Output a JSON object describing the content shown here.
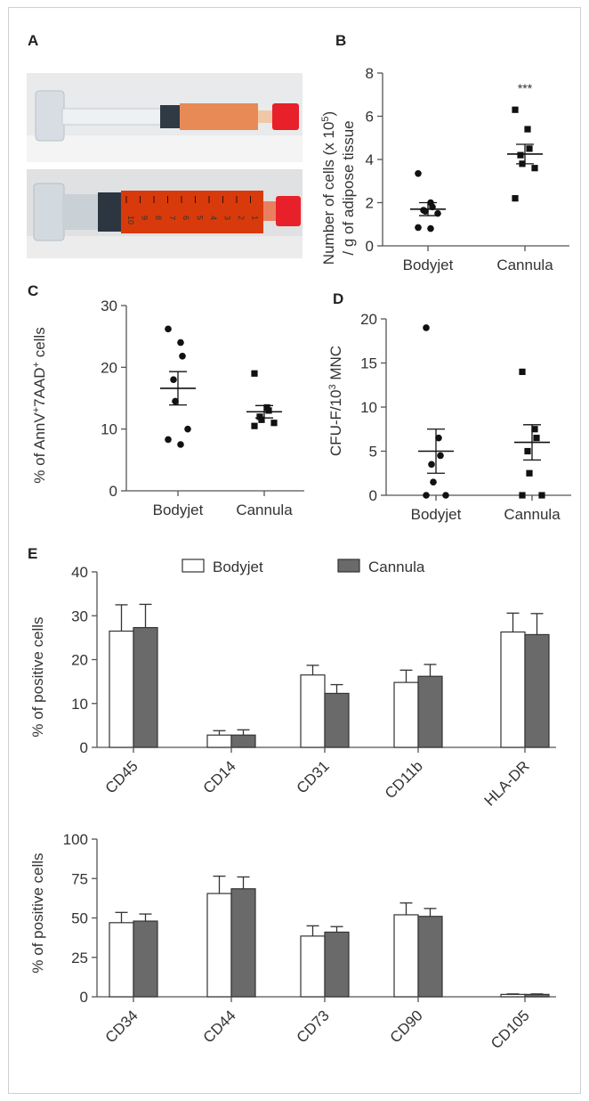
{
  "panels": {
    "A": {
      "label": "A"
    },
    "B": {
      "label": "B"
    },
    "C": {
      "label": "C"
    },
    "D": {
      "label": "D"
    },
    "E": {
      "label": "E"
    }
  },
  "photos": {
    "top_syringe_color": "#e88a55",
    "bottom_syringe_color": "#d83a0c",
    "cap_color": "#e8202a",
    "bottom_scale_numbers": [
      "10",
      "9",
      "8",
      "7",
      "6",
      "5",
      "4",
      "3",
      "2",
      "1"
    ]
  },
  "colors": {
    "open_bar": "#ffffff",
    "filled_bar": "#6a6a6a",
    "axis": "#555555",
    "point": "#111111"
  },
  "chart_data": [
    {
      "id": "B",
      "type": "scatter",
      "ylabel_line1": "Number of cells (x 10",
      "ylabel_sup": "5",
      "ylabel_line1_end": ")",
      "ylabel_line2": "/ g of adipose tissue",
      "ylim": [
        0,
        8
      ],
      "yticks": [
        "0",
        "2",
        "4",
        "6",
        "8"
      ],
      "categories": [
        "Bodyjet",
        "Cannula"
      ],
      "markers": [
        "circle",
        "square"
      ],
      "annotation": "***",
      "points": [
        [
          3.35,
          2.0,
          1.8,
          1.65,
          1.6,
          1.5,
          0.85,
          0.8
        ],
        [
          6.3,
          5.4,
          4.5,
          4.2,
          3.8,
          3.6,
          2.2
        ]
      ],
      "mean": [
        1.7,
        4.25
      ],
      "sem": [
        0.3,
        0.45
      ]
    },
    {
      "id": "C",
      "type": "scatter",
      "ylabel_pre": "% of AnnV",
      "ylabel_sup1": "+",
      "ylabel_mid": "7AAD",
      "ylabel_sup2": "+",
      "ylabel_post": " cells",
      "ylim": [
        0,
        30
      ],
      "yticks": [
        "0",
        "10",
        "20",
        "30"
      ],
      "categories": [
        "Bodyjet",
        "Cannula"
      ],
      "markers": [
        "circle",
        "square"
      ],
      "points": [
        [
          26.2,
          24.0,
          21.8,
          18.0,
          14.5,
          10.0,
          8.3,
          7.5
        ],
        [
          19.0,
          13.5,
          13.0,
          12.0,
          11.5,
          11.0,
          10.5
        ]
      ],
      "mean": [
        16.6,
        12.8
      ],
      "sem": [
        2.7,
        1.0
      ]
    },
    {
      "id": "D",
      "type": "scatter",
      "ylabel_pre": "CFU-F/10",
      "ylabel_sup": "3",
      "ylabel_post": " MNC",
      "ylim": [
        0,
        20
      ],
      "yticks": [
        "0",
        "5",
        "10",
        "15",
        "20"
      ],
      "categories": [
        "Bodyjet",
        "Cannula"
      ],
      "markers": [
        "circle",
        "square"
      ],
      "points": [
        [
          19.0,
          6.5,
          4.5,
          3.5,
          1.5,
          0.0,
          0.0
        ],
        [
          14.0,
          7.5,
          6.5,
          5.0,
          2.5,
          0.0,
          0.0
        ]
      ],
      "mean": [
        5.0,
        6.0
      ],
      "sem": [
        2.5,
        2.0
      ]
    },
    {
      "id": "E1",
      "type": "bar",
      "ylabel": "% of positive cells",
      "ylim": [
        0,
        40
      ],
      "yticks": [
        "0",
        "10",
        "20",
        "30",
        "40"
      ],
      "categories": [
        "CD45",
        "CD14",
        "CD31",
        "CD11b",
        "HLA-DR"
      ],
      "series": [
        {
          "name": "Bodyjet",
          "values": [
            26.5,
            2.8,
            16.5,
            14.8,
            26.3
          ],
          "errors": [
            6.0,
            1.0,
            2.2,
            2.8,
            4.3
          ]
        },
        {
          "name": "Cannula",
          "values": [
            27.3,
            2.8,
            12.3,
            16.2,
            25.7
          ],
          "errors": [
            5.3,
            1.2,
            2.0,
            2.7,
            4.8
          ]
        }
      ]
    },
    {
      "id": "E2",
      "type": "bar",
      "ylabel": "% of positive cells",
      "ylim": [
        0,
        100
      ],
      "yticks": [
        "0",
        "25",
        "50",
        "75",
        "100"
      ],
      "categories": [
        "CD34",
        "CD44",
        "CD73",
        "CD90",
        "CD105"
      ],
      "series": [
        {
          "name": "Bodyjet",
          "values": [
            47,
            65.5,
            38.5,
            52,
            1.5
          ],
          "errors": [
            6.5,
            11.0,
            6.5,
            7.5,
            0.3
          ]
        },
        {
          "name": "Cannula",
          "values": [
            48,
            68.5,
            41,
            51,
            1.5
          ],
          "errors": [
            4.5,
            7.5,
            3.5,
            5.0,
            0.3
          ]
        }
      ]
    }
  ]
}
